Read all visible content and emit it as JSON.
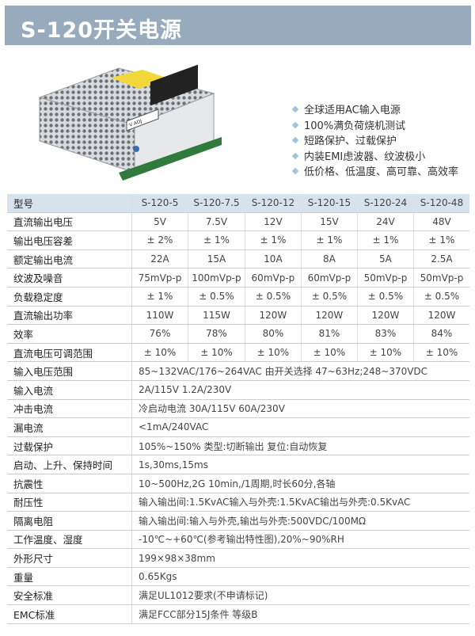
{
  "title": "S-120开关电源",
  "colors": {
    "banner": "#97abbc",
    "table_header": "#d6e3ee",
    "bullet": "#9fc3dc"
  },
  "features": [
    "全球适用AC输入电源",
    "100%满负荷烧机测试",
    "短路保护、过载保护",
    "内装EMI虑波器、纹波极小",
    "低价格、低温度、高可靠、高效率"
  ],
  "product_label": "V ADJ",
  "spec_table": {
    "header": {
      "label": "型号",
      "models": [
        "S-120-5",
        "S-120-7.5",
        "S-120-12",
        "S-120-15",
        "S-120-24",
        "S-120-48"
      ]
    },
    "model_rows": [
      {
        "label": "直流输出电压",
        "values": [
          "5V",
          "7.5V",
          "12V",
          "15V",
          "24V",
          "48V"
        ]
      },
      {
        "label": "输出电压容差",
        "values": [
          "± 2%",
          "± 1%",
          "± 1%",
          "± 1%",
          "± 1%",
          "± 1%"
        ]
      },
      {
        "label": "额定输出电流",
        "values": [
          "22A",
          "15A",
          "10A",
          "8A",
          "5A",
          "2.5A"
        ]
      },
      {
        "label": "纹波及噪音",
        "values": [
          "75mVp-p",
          "100mVp-p",
          "60mVp-p",
          "60mVp-p",
          "50mVp-p",
          "50mVp-p"
        ]
      },
      {
        "label": "负载稳定度",
        "values": [
          "± 1%",
          "± 0.5%",
          "± 0.5%",
          "± 0.5%",
          "± 0.5%",
          "± 0.5%"
        ]
      },
      {
        "label": "直流输出功率",
        "values": [
          "110W",
          "115W",
          "120W",
          "120W",
          "120W",
          "120W"
        ]
      },
      {
        "label": "效率",
        "values": [
          "76%",
          "78%",
          "80%",
          "81%",
          "83%",
          "84%"
        ]
      },
      {
        "label": "直流电压可调范围",
        "values": [
          "± 10%",
          "± 10%",
          "± 10%",
          "± 10%",
          "± 10%",
          "± 10%"
        ]
      }
    ],
    "common_rows": [
      {
        "label": "输入电压范围",
        "value": "85~132VAC/176~264VAC 由开关选择 47~63Hz;248~370VDC"
      },
      {
        "label": "输入电流",
        "value": "2A/115V 1.2A/230V"
      },
      {
        "label": "冲击电流",
        "value": "冷启动电流 30A/115V 60A/230V"
      },
      {
        "label": "漏电流",
        "value": "<1mA/240VAC"
      },
      {
        "label": "过载保护",
        "value": "105%~150% 类型:切断输出  复位:自动恢复"
      },
      {
        "label": "启动、上升、保持时间",
        "value": "1s,30ms,15ms"
      },
      {
        "label": "抗震性",
        "value": "10~500Hz,2G 10min,/1周期,时长60分,各轴"
      },
      {
        "label": "耐压性",
        "value": "输入输出间:1.5KvAC输入与外壳:1.5KvAC输出与外壳:0.5KvAC"
      },
      {
        "label": "隔离电阻",
        "value": "输入输出间:输入与外壳,输出与外壳:500VDC/100MΩ"
      },
      {
        "label": "工作温度、湿度",
        "value": "-10℃~+60℃(参考输出特性图),20%~90%RH"
      },
      {
        "label": "外形尺寸",
        "value": "199×98×38mm"
      },
      {
        "label": "重量",
        "value": "0.65Kgs"
      },
      {
        "label": "安全标准",
        "value": "满足UL1012要求(不申请标记)"
      },
      {
        "label": "EMC标准",
        "value": "满足FCC部分15J条件 等级B"
      }
    ]
  }
}
